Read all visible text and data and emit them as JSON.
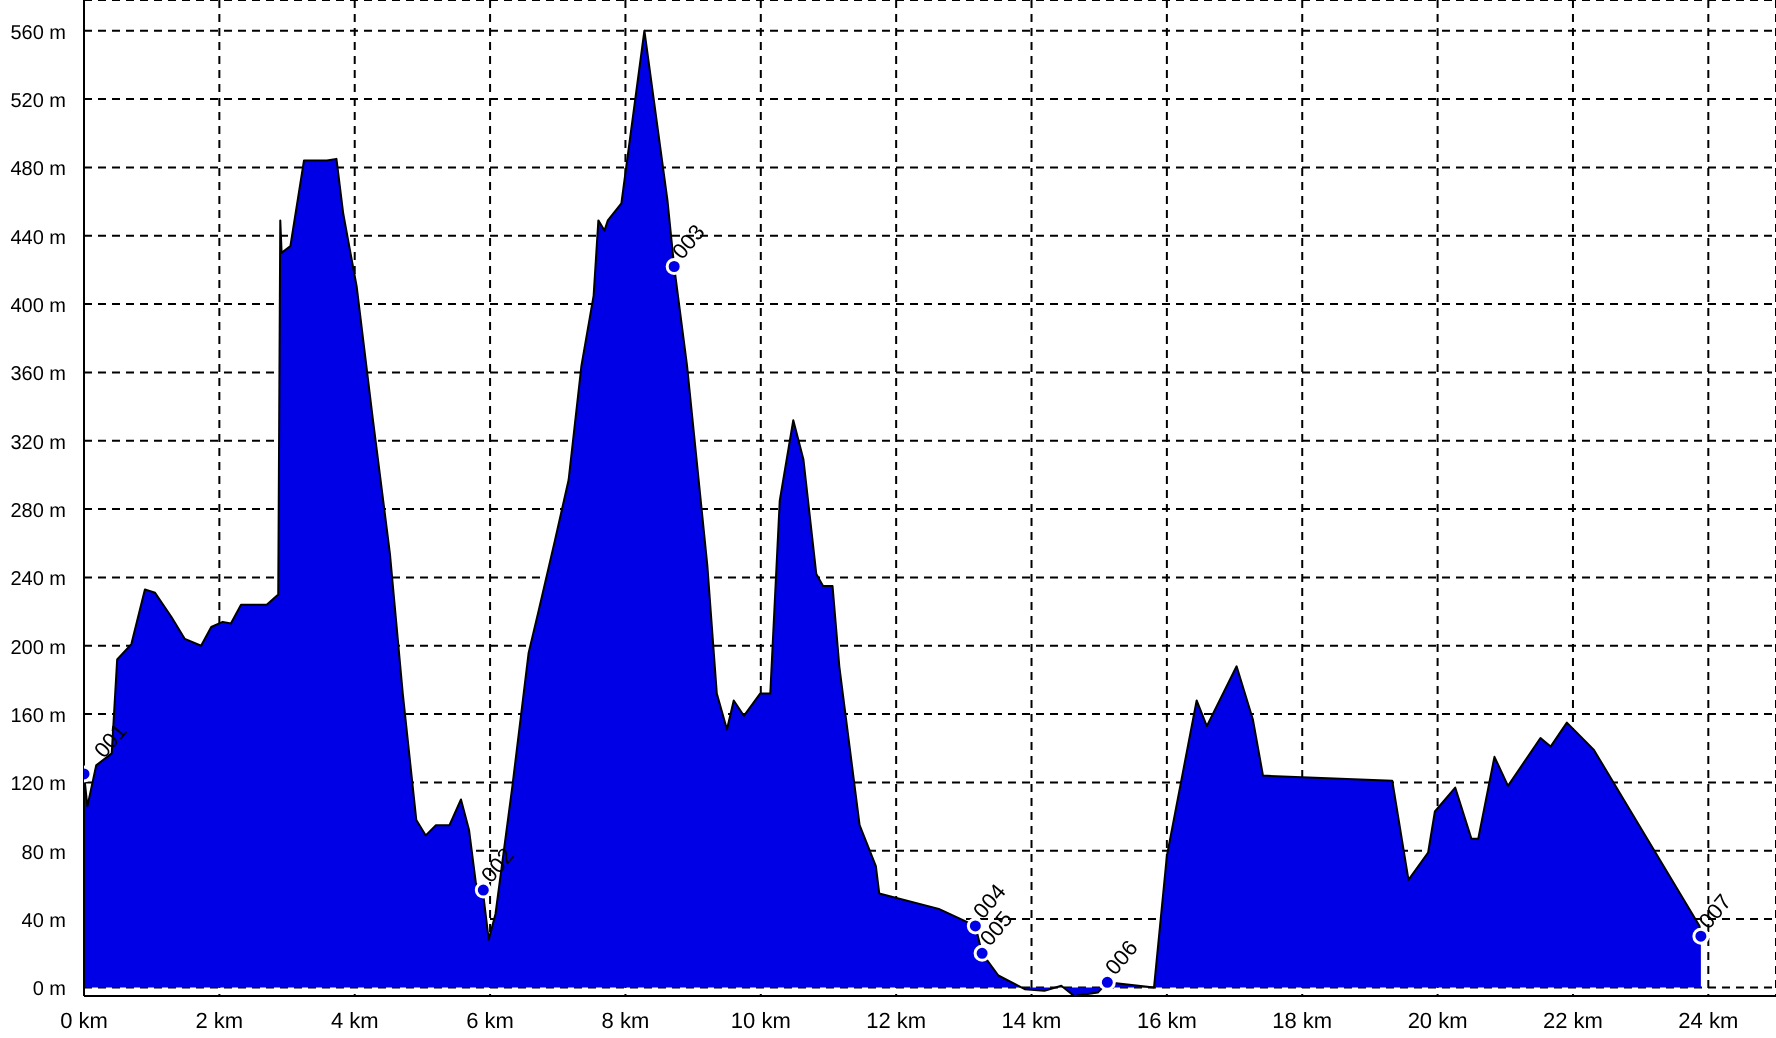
{
  "chart_data": {
    "type": "area",
    "xlim": [
      0,
      25
    ],
    "ylim": [
      -5,
      578
    ],
    "xticks": [
      {
        "value": 0,
        "label": "0 km"
      },
      {
        "value": 2,
        "label": "2 km"
      },
      {
        "value": 4,
        "label": "4 km"
      },
      {
        "value": 6,
        "label": "6 km"
      },
      {
        "value": 8,
        "label": "8 km"
      },
      {
        "value": 10,
        "label": "10 km"
      },
      {
        "value": 12,
        "label": "12 km"
      },
      {
        "value": 14,
        "label": "14 km"
      },
      {
        "value": 16,
        "label": "16 km"
      },
      {
        "value": 18,
        "label": "18 km"
      },
      {
        "value": 20,
        "label": "20 km"
      },
      {
        "value": 22,
        "label": "22 km"
      },
      {
        "value": 24,
        "label": "24 km"
      }
    ],
    "yticks": [
      {
        "value": 0,
        "label": "0 m"
      },
      {
        "value": 40,
        "label": "40 m"
      },
      {
        "value": 80,
        "label": "80 m"
      },
      {
        "value": 120,
        "label": "120 m"
      },
      {
        "value": 160,
        "label": "160 m"
      },
      {
        "value": 200,
        "label": "200 m"
      },
      {
        "value": 240,
        "label": "240 m"
      },
      {
        "value": 280,
        "label": "280 m"
      },
      {
        "value": 320,
        "label": "320 m"
      },
      {
        "value": 360,
        "label": "360 m"
      },
      {
        "value": 400,
        "label": "400 m"
      },
      {
        "value": 440,
        "label": "440 m"
      },
      {
        "value": 480,
        "label": "480 m"
      },
      {
        "value": 520,
        "label": "520 m"
      },
      {
        "value": 560,
        "label": "560 m"
      }
    ],
    "grid": true,
    "series": [
      {
        "color": "#0000e6",
        "x": [
          0,
          0.05,
          0.18,
          0.41,
          0.49,
          0.7,
          0.9,
          1.05,
          1.29,
          1.49,
          1.73,
          1.88,
          2.05,
          2.17,
          2.32,
          2.7,
          2.87,
          2.9,
          2.92,
          3.05,
          3.25,
          3.59,
          3.73,
          3.83,
          4.03,
          4.27,
          4.52,
          4.71,
          4.91,
          5.05,
          5.2,
          5.4,
          5.57,
          5.69,
          5.79,
          5.9,
          5.98,
          6.08,
          6.33,
          6.57,
          6.72,
          6.96,
          7.16,
          7.35,
          7.53,
          7.6,
          7.69,
          7.74,
          7.94,
          8.28,
          8.62,
          8.72,
          8.91,
          9.21,
          9.35,
          9.5,
          9.6,
          9.75,
          9.99,
          10.14,
          10.28,
          10.48,
          10.63,
          10.82,
          10.92,
          11.06,
          11.16,
          11.46,
          11.7,
          11.75,
          12.63,
          13.17,
          13.27,
          13.51,
          13.9,
          14.19,
          14.44,
          14.63,
          14.98,
          15.12,
          15.81,
          16,
          16.44,
          16.59,
          17.03,
          17.27,
          17.42,
          19.33,
          19.57,
          19.86,
          19.96,
          20.26,
          20.5,
          20.6,
          20.84,
          21.04,
          21.52,
          21.67,
          21.91,
          22.31,
          23.87,
          23.89
        ],
        "values": [
          125,
          106,
          130,
          137,
          192,
          201,
          233,
          231,
          217,
          204,
          200,
          211,
          214,
          213,
          224,
          224,
          230,
          449,
          430,
          434,
          484,
          484,
          485,
          453,
          410,
          332,
          254,
          172,
          98,
          89,
          95,
          95,
          110,
          92,
          61,
          54,
          28,
          43,
          118,
          196,
          221,
          262,
          297,
          364,
          405,
          449,
          443,
          449,
          459,
          560,
          461,
          422,
          364,
          247,
          172,
          151,
          168,
          159,
          172,
          172,
          285,
          332,
          309,
          242,
          235,
          235,
          188,
          95,
          71,
          55,
          46,
          36,
          20,
          7,
          -1,
          -2,
          1,
          -5,
          -3,
          3,
          0,
          77,
          168,
          153,
          188,
          157,
          124,
          121,
          63,
          79,
          103,
          117,
          87,
          87,
          135,
          118,
          146,
          141,
          155,
          139,
          36,
          30
        ]
      },
      {
        "type": "scatter",
        "color": "#0000e6",
        "marker": "circle",
        "x": [
          0,
          5.9,
          8.72,
          13.17,
          13.27,
          15.12,
          23.89
        ],
        "values": [
          125,
          57,
          422,
          36,
          20,
          3,
          30
        ]
      }
    ],
    "annotations": [
      {
        "text": "001",
        "x": 0.18,
        "y": 130
      },
      {
        "text": "002",
        "x": 5.9,
        "y": 57
      },
      {
        "text": "003",
        "x": 8.72,
        "y": 422
      },
      {
        "text": "004",
        "x": 13.17,
        "y": 36
      },
      {
        "text": "005",
        "x": 13.27,
        "y": 20
      },
      {
        "text": "006",
        "x": 15.12,
        "y": 3
      },
      {
        "text": "007",
        "x": 23.89,
        "y": 30
      }
    ]
  }
}
